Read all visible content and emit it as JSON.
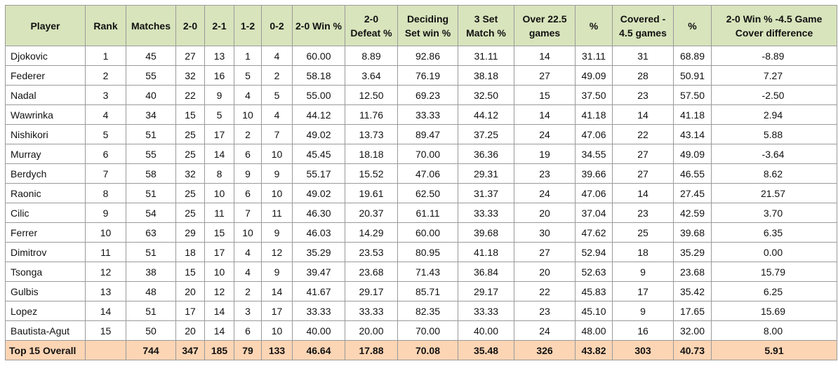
{
  "headers": [
    [
      "Player"
    ],
    [
      "Rank"
    ],
    [
      "Matches"
    ],
    [
      "2-0"
    ],
    [
      "2-1"
    ],
    [
      "1-2"
    ],
    [
      "0-2"
    ],
    [
      "2-0 Win %"
    ],
    [
      "2-0",
      "Defeat %"
    ],
    [
      "Deciding",
      "Set win %"
    ],
    [
      "3 Set",
      "Match %"
    ],
    [
      "Over 22.5",
      "games"
    ],
    [
      "%"
    ],
    [
      "Covered -",
      "4.5 games"
    ],
    [
      "%"
    ],
    [
      "2-0 Win % -4.5 Game",
      "Cover difference"
    ]
  ],
  "rows": [
    [
      "Djokovic",
      "1",
      "45",
      "27",
      "13",
      "1",
      "4",
      "60.00",
      "8.89",
      "92.86",
      "31.11",
      "14",
      "31.11",
      "31",
      "68.89",
      "-8.89"
    ],
    [
      "Federer",
      "2",
      "55",
      "32",
      "16",
      "5",
      "2",
      "58.18",
      "3.64",
      "76.19",
      "38.18",
      "27",
      "49.09",
      "28",
      "50.91",
      "7.27"
    ],
    [
      "Nadal",
      "3",
      "40",
      "22",
      "9",
      "4",
      "5",
      "55.00",
      "12.50",
      "69.23",
      "32.50",
      "15",
      "37.50",
      "23",
      "57.50",
      "-2.50"
    ],
    [
      "Wawrinka",
      "4",
      "34",
      "15",
      "5",
      "10",
      "4",
      "44.12",
      "11.76",
      "33.33",
      "44.12",
      "14",
      "41.18",
      "14",
      "41.18",
      "2.94"
    ],
    [
      "Nishikori",
      "5",
      "51",
      "25",
      "17",
      "2",
      "7",
      "49.02",
      "13.73",
      "89.47",
      "37.25",
      "24",
      "47.06",
      "22",
      "43.14",
      "5.88"
    ],
    [
      "Murray",
      "6",
      "55",
      "25",
      "14",
      "6",
      "10",
      "45.45",
      "18.18",
      "70.00",
      "36.36",
      "19",
      "34.55",
      "27",
      "49.09",
      "-3.64"
    ],
    [
      "Berdych",
      "7",
      "58",
      "32",
      "8",
      "9",
      "9",
      "55.17",
      "15.52",
      "47.06",
      "29.31",
      "23",
      "39.66",
      "27",
      "46.55",
      "8.62"
    ],
    [
      "Raonic",
      "8",
      "51",
      "25",
      "10",
      "6",
      "10",
      "49.02",
      "19.61",
      "62.50",
      "31.37",
      "24",
      "47.06",
      "14",
      "27.45",
      "21.57"
    ],
    [
      "Cilic",
      "9",
      "54",
      "25",
      "11",
      "7",
      "11",
      "46.30",
      "20.37",
      "61.11",
      "33.33",
      "20",
      "37.04",
      "23",
      "42.59",
      "3.70"
    ],
    [
      "Ferrer",
      "10",
      "63",
      "29",
      "15",
      "10",
      "9",
      "46.03",
      "14.29",
      "60.00",
      "39.68",
      "30",
      "47.62",
      "25",
      "39.68",
      "6.35"
    ],
    [
      "Dimitrov",
      "11",
      "51",
      "18",
      "17",
      "4",
      "12",
      "35.29",
      "23.53",
      "80.95",
      "41.18",
      "27",
      "52.94",
      "18",
      "35.29",
      "0.00"
    ],
    [
      "Tsonga",
      "12",
      "38",
      "15",
      "10",
      "4",
      "9",
      "39.47",
      "23.68",
      "71.43",
      "36.84",
      "20",
      "52.63",
      "9",
      "23.68",
      "15.79"
    ],
    [
      "Gulbis",
      "13",
      "48",
      "20",
      "12",
      "2",
      "14",
      "41.67",
      "29.17",
      "85.71",
      "29.17",
      "22",
      "45.83",
      "17",
      "35.42",
      "6.25"
    ],
    [
      "Lopez",
      "14",
      "51",
      "17",
      "14",
      "3",
      "17",
      "33.33",
      "33.33",
      "82.35",
      "33.33",
      "23",
      "45.10",
      "9",
      "17.65",
      "15.69"
    ],
    [
      "Bautista-Agut",
      "15",
      "50",
      "20",
      "14",
      "6",
      "10",
      "40.00",
      "20.00",
      "70.00",
      "40.00",
      "24",
      "48.00",
      "16",
      "32.00",
      "8.00"
    ]
  ],
  "total": [
    "Top 15 Overall",
    "",
    "744",
    "347",
    "185",
    "79",
    "133",
    "46.64",
    "17.88",
    "70.08",
    "35.48",
    "326",
    "43.82",
    "303",
    "40.73",
    "5.91"
  ],
  "colors": {
    "header_bg": "#d8e4bc",
    "total_bg": "#fcd5b4",
    "border": "#9a9a9a"
  }
}
